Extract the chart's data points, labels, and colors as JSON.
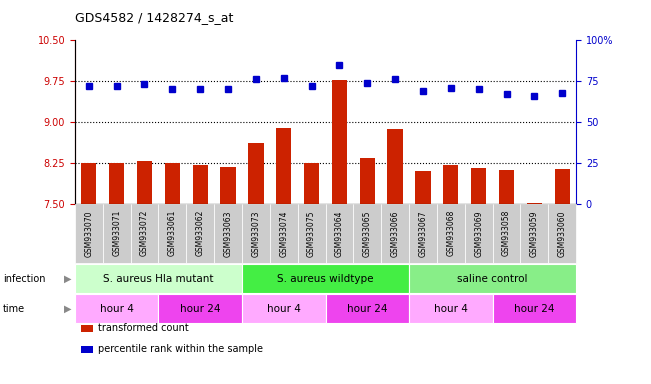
{
  "title": "GDS4582 / 1428274_s_at",
  "samples": [
    "GSM933070",
    "GSM933071",
    "GSM933072",
    "GSM933061",
    "GSM933062",
    "GSM933063",
    "GSM933073",
    "GSM933074",
    "GSM933075",
    "GSM933064",
    "GSM933065",
    "GSM933066",
    "GSM933067",
    "GSM933068",
    "GSM933069",
    "GSM933058",
    "GSM933059",
    "GSM933060"
  ],
  "bar_values": [
    8.25,
    8.25,
    8.28,
    8.25,
    8.2,
    8.17,
    8.62,
    8.88,
    8.25,
    9.77,
    8.33,
    8.87,
    8.1,
    8.21,
    8.15,
    8.12,
    7.51,
    8.13
  ],
  "dot_values": [
    72,
    72,
    73,
    70,
    70,
    70,
    76,
    77,
    72,
    85,
    74,
    76,
    69,
    71,
    70,
    67,
    66,
    68
  ],
  "ylim_left": [
    7.5,
    10.5
  ],
  "ylim_right": [
    0,
    100
  ],
  "yticks_left": [
    7.5,
    8.25,
    9.0,
    9.75,
    10.5
  ],
  "yticks_right": [
    0,
    25,
    50,
    75,
    100
  ],
  "hlines": [
    8.25,
    9.0,
    9.75
  ],
  "bar_color": "#cc2200",
  "dot_color": "#0000cc",
  "plot_bg": "#ffffff",
  "xtick_bg": "#cccccc",
  "infection_groups": [
    {
      "label": "S. aureus Hla mutant",
      "start": 0,
      "end": 6,
      "color": "#ccffcc"
    },
    {
      "label": "S. aureus wildtype",
      "start": 6,
      "end": 12,
      "color": "#44ee44"
    },
    {
      "label": "saline control",
      "start": 12,
      "end": 18,
      "color": "#88ee88"
    }
  ],
  "time_groups": [
    {
      "label": "hour 4",
      "start": 0,
      "end": 3,
      "color": "#ffaaff"
    },
    {
      "label": "hour 24",
      "start": 3,
      "end": 6,
      "color": "#ee44ee"
    },
    {
      "label": "hour 4",
      "start": 6,
      "end": 9,
      "color": "#ffaaff"
    },
    {
      "label": "hour 24",
      "start": 9,
      "end": 12,
      "color": "#ee44ee"
    },
    {
      "label": "hour 4",
      "start": 12,
      "end": 15,
      "color": "#ffaaff"
    },
    {
      "label": "hour 24",
      "start": 15,
      "end": 18,
      "color": "#ee44ee"
    }
  ],
  "legend_items": [
    {
      "label": "transformed count",
      "color": "#cc2200"
    },
    {
      "label": "percentile rank within the sample",
      "color": "#0000cc"
    }
  ],
  "infection_label": "infection",
  "time_label": "time",
  "left_axis_color": "#cc0000",
  "right_axis_color": "#0000cc"
}
